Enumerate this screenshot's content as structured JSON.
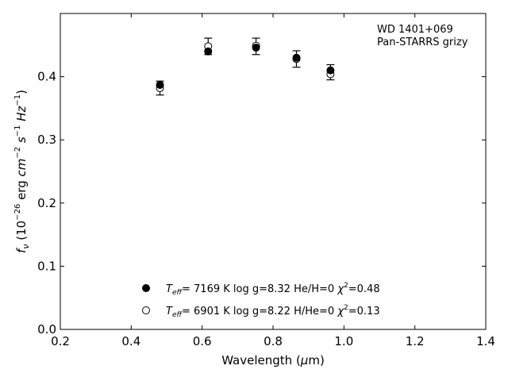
{
  "chart_data": {
    "type": "scatter",
    "xlim": [
      0.2,
      1.4
    ],
    "ylim": [
      0.0,
      0.5
    ],
    "x_ticks": [
      0.2,
      0.4,
      0.6,
      0.8,
      1.0,
      1.2,
      1.4
    ],
    "y_ticks": [
      0.0,
      0.1,
      0.2,
      0.3,
      0.4
    ],
    "x_tick_labels": [
      "0.2",
      "0.4",
      "0.6",
      "0.8",
      "1.0",
      "1.2",
      "1.4"
    ],
    "y_tick_labels": [
      "0.0",
      "0.1",
      "0.2",
      "0.3",
      "0.4"
    ],
    "xlabel": {
      "pre": "Wavelength (",
      "greek": "μ",
      "post": "m)"
    },
    "ylabel": {
      "f": "f",
      "nu": "ν",
      "open": " (10",
      "exp26": "−26",
      "erg": " erg ",
      "cm": "cm",
      "exp2": "−2",
      "s": " s",
      "exp1a": "−1",
      "hz": " Hz",
      "exp1b": "−1",
      "close": ")"
    },
    "grid": false,
    "annotation": [
      "WD 1401+069",
      "Pan-STARRS grizy"
    ],
    "observed": {
      "x": [
        0.481,
        0.617,
        0.752,
        0.866,
        0.962
      ],
      "y": [
        0.382,
        0.448,
        0.448,
        0.428,
        0.407
      ],
      "yerr": [
        0.011,
        0.013,
        0.013,
        0.013,
        0.012
      ]
    },
    "series": [
      {
        "marker": "filled-circle",
        "x": [
          0.481,
          0.617,
          0.752,
          0.866,
          0.962
        ],
        "y": [
          0.387,
          0.44,
          0.446,
          0.43,
          0.41
        ],
        "legend": {
          "teff_label": "T",
          "teff_sub": "eff",
          "teff_value": "=  7169 K",
          "logg": "  log g=8.32",
          "comp": "  He/H=0",
          "chi_label": "  χ",
          "chi_sup": "2",
          "chi_value": "=0.48"
        }
      },
      {
        "marker": "open-circle",
        "x": [
          0.481,
          0.617,
          0.752,
          0.866,
          0.962
        ],
        "y": [
          0.382,
          0.448,
          0.449,
          0.428,
          0.404
        ],
        "legend": {
          "teff_label": "T",
          "teff_sub": "eff",
          "teff_value": "=  6901 K",
          "logg": "  log g=8.22",
          "comp": "  H/He=0",
          "chi_label": "  χ",
          "chi_sup": "2",
          "chi_value": "=0.13"
        }
      }
    ]
  }
}
